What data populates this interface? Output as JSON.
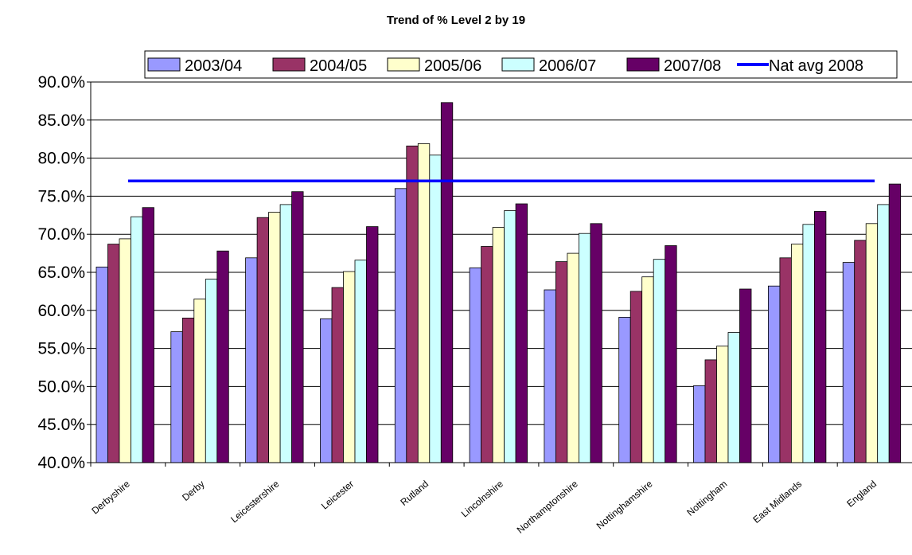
{
  "chart_data": {
    "type": "bar",
    "title": "Trend of % Level 2 by 19",
    "xlabel": "",
    "ylabel": "",
    "ylim": [
      0.4,
      0.9
    ],
    "y_ticks": [
      "40.0%",
      "45.0%",
      "50.0%",
      "55.0%",
      "60.0%",
      "65.0%",
      "70.0%",
      "75.0%",
      "80.0%",
      "85.0%",
      "90.0%"
    ],
    "grid": true,
    "legend_position": "top",
    "categories": [
      "Derbyshire",
      "Derby",
      "Leicestershire",
      "Leicester",
      "Rutland",
      "Lincolnshire",
      "Northamptonshire",
      "Nottinghamshire",
      "Nottingham",
      "East Midlands",
      "England"
    ],
    "series": [
      {
        "name": "2003/04",
        "color": "#9999ff",
        "values": [
          0.657,
          0.572,
          0.669,
          0.589,
          0.76,
          0.656,
          0.627,
          0.591,
          0.501,
          0.632,
          0.663
        ]
      },
      {
        "name": "2004/05",
        "color": "#993366",
        "values": [
          0.687,
          0.59,
          0.722,
          0.63,
          0.816,
          0.684,
          0.664,
          0.625,
          0.535,
          0.669,
          0.692
        ]
      },
      {
        "name": "2005/06",
        "color": "#ffffcc",
        "values": [
          0.694,
          0.615,
          0.729,
          0.651,
          0.819,
          0.709,
          0.675,
          0.644,
          0.553,
          0.687,
          0.714
        ]
      },
      {
        "name": "2006/07",
        "color": "#ccffff",
        "values": [
          0.723,
          0.641,
          0.739,
          0.666,
          0.804,
          0.731,
          0.701,
          0.667,
          0.571,
          0.713,
          0.739
        ]
      },
      {
        "name": "2007/08",
        "color": "#660066",
        "values": [
          0.735,
          0.678,
          0.756,
          0.71,
          0.873,
          0.74,
          0.714,
          0.685,
          0.628,
          0.73,
          0.766
        ]
      }
    ],
    "reference_line": {
      "name": "Nat avg 2008",
      "color": "#0000ff",
      "value": 0.77
    }
  }
}
